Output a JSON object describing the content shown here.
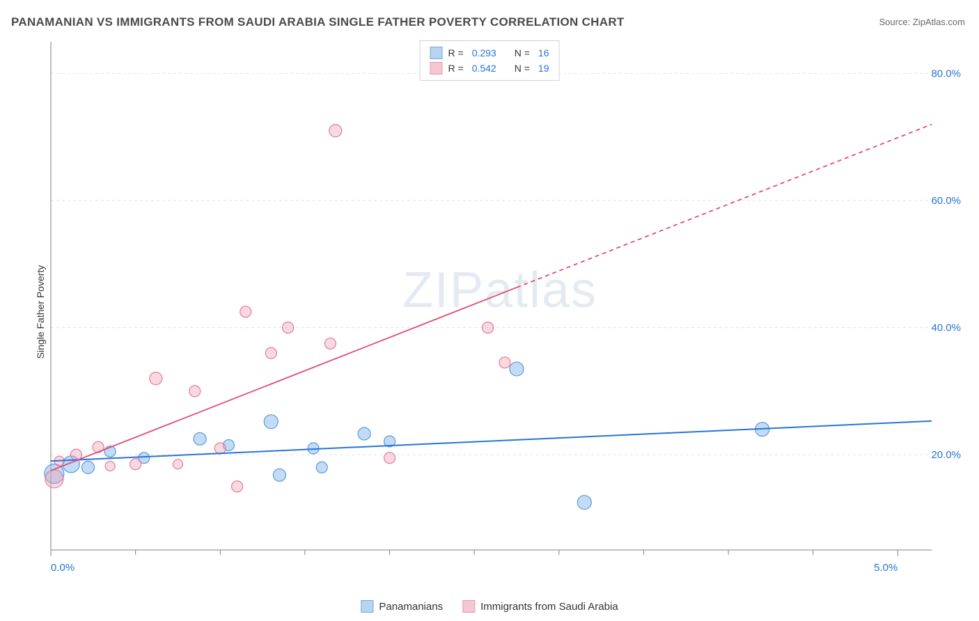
{
  "title": "PANAMANIAN VS IMMIGRANTS FROM SAUDI ARABIA SINGLE FATHER POVERTY CORRELATION CHART",
  "source_label": "Source: ",
  "source_name": "ZipAtlas.com",
  "y_axis_label": "Single Father Poverty",
  "watermark": "ZIPatlas",
  "chart": {
    "type": "scatter",
    "xlim": [
      0,
      5.2
    ],
    "ylim": [
      5,
      85
    ],
    "x_ticks": [
      0.0,
      5.0
    ],
    "x_tick_labels": [
      "0.0%",
      "5.0%"
    ],
    "y_ticks": [
      20.0,
      40.0,
      60.0,
      80.0
    ],
    "y_tick_labels": [
      "20.0%",
      "40.0%",
      "60.0%",
      "80.0%"
    ],
    "x_minor_ticks": [
      0.5,
      1.0,
      1.5,
      2.0,
      2.5,
      3.0,
      3.5,
      4.0,
      4.5
    ],
    "grid_color": "#e0e0e0",
    "grid_dash": "4,4",
    "background_color": "#ffffff",
    "axis_line_color": "#808080",
    "tick_label_color": "#2673d8",
    "tick_label_fontsize": 15,
    "marker_stroke_width": 1.2,
    "marker_base_radius": 9
  },
  "series": [
    {
      "id": "panamanians",
      "label": "Panamanians",
      "fill_color": "rgba(120,175,235,0.45)",
      "stroke_color": "#5a9ad8",
      "swatch_fill": "#b7d4f0",
      "swatch_border": "#6fa8dc",
      "R": "0.293",
      "N": "16",
      "points": [
        {
          "x": 0.02,
          "y": 17.0,
          "r": 14
        },
        {
          "x": 0.12,
          "y": 18.5,
          "r": 12
        },
        {
          "x": 0.22,
          "y": 18.0,
          "r": 9
        },
        {
          "x": 0.35,
          "y": 20.5,
          "r": 8
        },
        {
          "x": 0.55,
          "y": 19.5,
          "r": 8
        },
        {
          "x": 0.88,
          "y": 22.5,
          "r": 9
        },
        {
          "x": 1.05,
          "y": 21.5,
          "r": 8
        },
        {
          "x": 1.3,
          "y": 25.2,
          "r": 10
        },
        {
          "x": 1.35,
          "y": 16.8,
          "r": 9
        },
        {
          "x": 1.55,
          "y": 21.0,
          "r": 8
        },
        {
          "x": 1.6,
          "y": 18.0,
          "r": 8
        },
        {
          "x": 1.85,
          "y": 23.3,
          "r": 9
        },
        {
          "x": 2.0,
          "y": 22.1,
          "r": 8
        },
        {
          "x": 2.75,
          "y": 33.5,
          "r": 10
        },
        {
          "x": 3.15,
          "y": 12.5,
          "r": 10
        },
        {
          "x": 4.2,
          "y": 24.0,
          "r": 10
        }
      ],
      "regression": {
        "x1": 0.0,
        "y1": 19.0,
        "x2": 5.2,
        "y2": 25.3,
        "color": "#2673d8",
        "width": 2.0,
        "dash_from_x": null
      }
    },
    {
      "id": "saudi",
      "label": "Immigrants from Saudi Arabia",
      "fill_color": "rgba(240,160,180,0.4)",
      "stroke_color": "#e27a98",
      "swatch_fill": "#f5c7d3",
      "swatch_border": "#e398ad",
      "R": "0.542",
      "N": "19",
      "points": [
        {
          "x": 0.02,
          "y": 16.2,
          "r": 13
        },
        {
          "x": 0.15,
          "y": 20.0,
          "r": 8
        },
        {
          "x": 0.28,
          "y": 21.2,
          "r": 8
        },
        {
          "x": 0.35,
          "y": 18.2,
          "r": 7
        },
        {
          "x": 0.5,
          "y": 18.5,
          "r": 8
        },
        {
          "x": 0.62,
          "y": 32.0,
          "r": 9
        },
        {
          "x": 0.75,
          "y": 18.5,
          "r": 7
        },
        {
          "x": 0.85,
          "y": 30.0,
          "r": 8
        },
        {
          "x": 1.0,
          "y": 21.0,
          "r": 8
        },
        {
          "x": 1.1,
          "y": 15.0,
          "r": 8
        },
        {
          "x": 1.15,
          "y": 42.5,
          "r": 8
        },
        {
          "x": 1.3,
          "y": 36.0,
          "r": 8
        },
        {
          "x": 1.4,
          "y": 40.0,
          "r": 8
        },
        {
          "x": 1.65,
          "y": 37.5,
          "r": 8
        },
        {
          "x": 1.68,
          "y": 71.0,
          "r": 9
        },
        {
          "x": 2.0,
          "y": 19.5,
          "r": 8
        },
        {
          "x": 2.58,
          "y": 40.0,
          "r": 8
        },
        {
          "x": 2.68,
          "y": 34.5,
          "r": 8
        },
        {
          "x": 0.05,
          "y": 19.0,
          "r": 7
        }
      ],
      "regression": {
        "x1": 0.0,
        "y1": 17.5,
        "x2": 5.2,
        "y2": 72.0,
        "color": "#e04a78",
        "width": 1.8,
        "dash_from_x": 2.75
      }
    }
  ],
  "legend_top": {
    "R_label": "R =",
    "N_label": "N ="
  }
}
